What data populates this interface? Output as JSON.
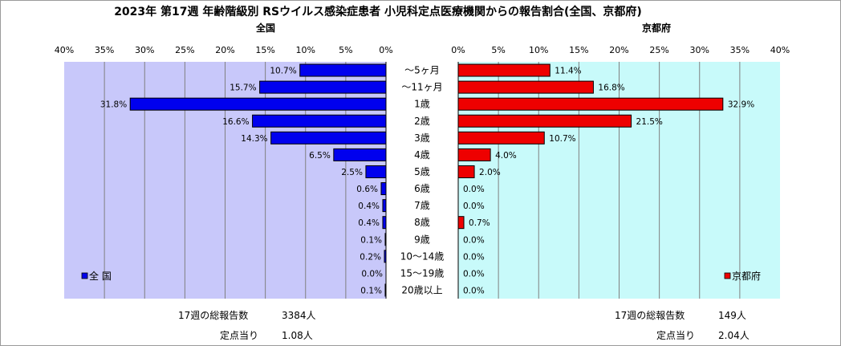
{
  "chart_data": {
    "type": "bar",
    "title": "2023年 第17週 年齢階級別 RSウイルス感染症患者 小児科定点医療機関からの報告割合(全国、京都府)",
    "categories": [
      "～5ヶ月",
      "～11ヶ月",
      "1歳",
      "2歳",
      "3歳",
      "4歳",
      "5歳",
      "6歳",
      "7歳",
      "8歳",
      "9歳",
      "10～14歳",
      "15～19歳",
      "20歳以上"
    ],
    "series": [
      {
        "name": "全国",
        "legend_label": "全 国",
        "color": "#0000ee",
        "values": [
          10.7,
          15.7,
          31.8,
          16.6,
          14.3,
          6.5,
          2.5,
          0.6,
          0.4,
          0.4,
          0.1,
          0.2,
          0.0,
          0.1
        ]
      },
      {
        "name": "京都府",
        "legend_label": "京都府",
        "color": "#ee0000",
        "values": [
          11.4,
          16.8,
          32.9,
          21.5,
          10.7,
          4.0,
          2.0,
          0.0,
          0.0,
          0.7,
          0.0,
          0.0,
          0.0,
          0.0
        ]
      }
    ],
    "xlim": [
      0,
      40
    ],
    "ticks": [
      0,
      5,
      10,
      15,
      20,
      25,
      30,
      35,
      40
    ],
    "unit": "%",
    "grid": true,
    "plot_bg_left": "#c8c8fa",
    "plot_bg_right": "#c8fafa",
    "legend_position": "bottom-inside"
  },
  "footer": {
    "left": {
      "reports_label": "17週の総報告数",
      "reports_value": "3384人",
      "per_site_label": "定点当り",
      "per_site_value": "1.08人"
    },
    "right": {
      "reports_label": "17週の総報告数",
      "reports_value": "149人",
      "per_site_label": "定点当り",
      "per_site_value": "2.04人"
    }
  }
}
